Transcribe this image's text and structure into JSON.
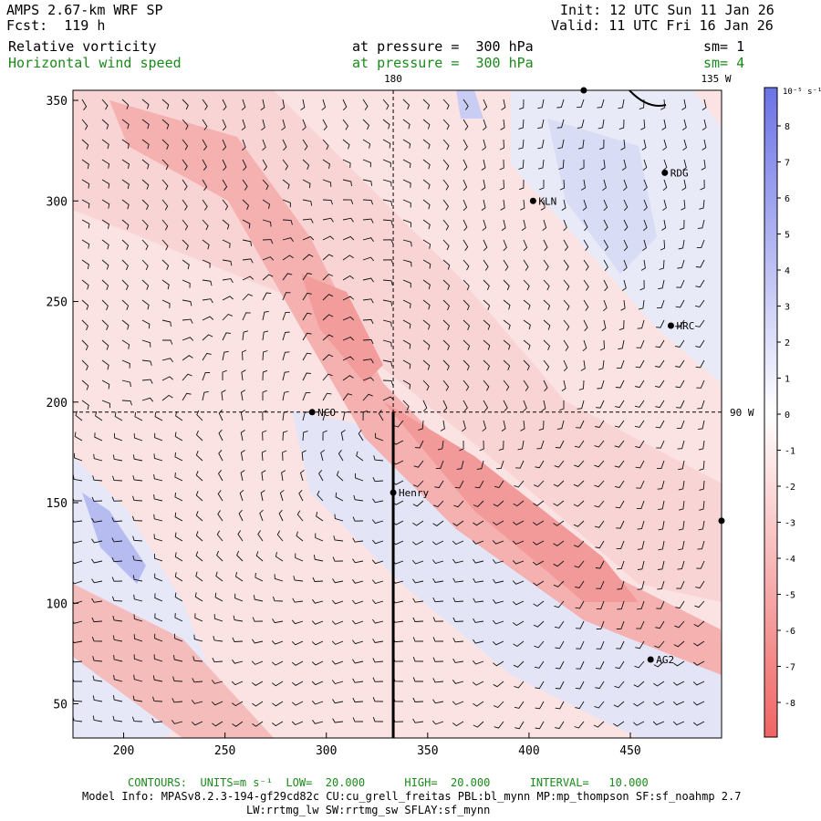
{
  "header": {
    "model": "AMPS 2.67-km WRF SP",
    "fcst": "Fcst:  119 h",
    "init": "Init: 12 UTC Sun 11 Jan 26",
    "valid": "Valid: 11 UTC Fri 16 Jan 26",
    "field1": {
      "name": "Relative vorticity",
      "level": "at pressure =  300 hPa",
      "sm": "sm= 1"
    },
    "field2": {
      "name": "Horizontal wind speed",
      "level": "at pressure =  300 hPa",
      "sm": "sm= 4"
    }
  },
  "map": {
    "x_ticks": [
      "200",
      "250",
      "300",
      "350",
      "400",
      "450"
    ],
    "y_ticks": [
      "50",
      "100",
      "150",
      "200",
      "250",
      "300",
      "350"
    ],
    "x_range": [
      175,
      495
    ],
    "y_range": [
      33,
      355
    ],
    "lon_labels": {
      "top_180": "180",
      "top_135w": "135 W",
      "right_90w": "90 W"
    },
    "stations": [
      {
        "name": "KLN",
        "x": 402,
        "y": 300
      },
      {
        "name": "RDG",
        "x": 467,
        "y": 314
      },
      {
        "name": "HRC",
        "x": 470,
        "y": 238
      },
      {
        "name": "NCO",
        "x": 293,
        "y": 195
      },
      {
        "name": "Henry",
        "x": 333,
        "y": 155
      },
      {
        "name": "AG2",
        "x": 460,
        "y": 72
      },
      {
        "name": "",
        "x": 427,
        "y": 355
      },
      {
        "name": "",
        "x": 495,
        "y": 141
      }
    ],
    "crosshair": {
      "x": 333,
      "y": 195
    },
    "thick_line": {
      "x": 333,
      "y_from": 33,
      "y_to": 195
    }
  },
  "colorbar": {
    "unit": "10⁻⁵ s⁻¹",
    "labels": [
      "8",
      "7",
      "6",
      "5",
      "4",
      "3",
      "2",
      "1",
      "0",
      "-1",
      "-2",
      "-3",
      "-4",
      "-5",
      "-6",
      "-7",
      "-8"
    ],
    "colors": {
      "positive": "#6b72e6",
      "zero": "#ffffff",
      "negative": "#f06464"
    }
  },
  "footer": {
    "contours": "CONTOURS:  UNITS=m s⁻¹  LOW=  20.000      HIGH=  20.000      INTERVAL=   10.000",
    "model_info": "Model Info: MPASv8.2.3-194-gf29cd82c CU:cu_grell_freitas PBL:bl_mynn MP:mp_thompson SF:sf_noahmp 2.7",
    "model_info2": "LW:rrtmg_lw SW:rrtmg_sw SFLAY:sf_mynn"
  }
}
